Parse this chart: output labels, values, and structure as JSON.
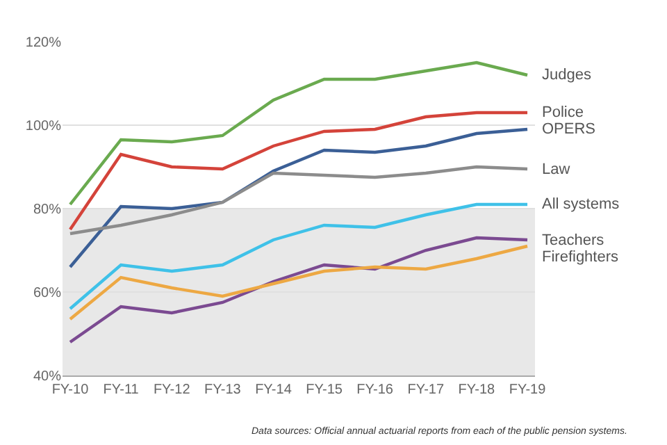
{
  "chart_data": {
    "type": "line",
    "categories": [
      "FY-10",
      "FY-11",
      "FY-12",
      "FY-13",
      "FY-14",
      "FY-15",
      "FY-16",
      "FY-17",
      "FY-18",
      "FY-19"
    ],
    "series": [
      {
        "name": "Judges",
        "color": "#6aaa4f",
        "values": [
          81,
          96.5,
          96,
          97.5,
          106,
          111,
          111,
          113,
          115,
          112
        ]
      },
      {
        "name": "Police",
        "color": "#d4433a",
        "values": [
          75,
          93,
          90,
          89.5,
          95,
          98.5,
          99,
          102,
          103,
          103
        ]
      },
      {
        "name": "OPERS",
        "color": "#3b5f96",
        "values": [
          66,
          80.5,
          80,
          81.5,
          89,
          94,
          93.5,
          95,
          98,
          99
        ]
      },
      {
        "name": "Law",
        "color": "#8c8c8c",
        "values": [
          74,
          76,
          78.5,
          81.5,
          88.5,
          88,
          87.5,
          88.5,
          90,
          89.5
        ]
      },
      {
        "name": "All systems",
        "color": "#3fc1e8",
        "values": [
          56,
          66.5,
          65,
          66.5,
          72.5,
          76,
          75.5,
          78.5,
          81,
          81
        ]
      },
      {
        "name": "Teachers",
        "color": "#7b4a91",
        "values": [
          48,
          56.5,
          55,
          57.5,
          62.5,
          66.5,
          65.5,
          70,
          73,
          72.5
        ]
      },
      {
        "name": "Firefighters",
        "color": "#eda843",
        "values": [
          53.5,
          63.5,
          61,
          59,
          62,
          65,
          66,
          65.5,
          68,
          71
        ]
      }
    ],
    "ylim": [
      40,
      120
    ],
    "yticks": [
      {
        "value": 40,
        "label": "40%"
      },
      {
        "value": 60,
        "label": "60%"
      },
      {
        "value": 80,
        "label": "80%"
      },
      {
        "value": 100,
        "label": "100%"
      },
      {
        "value": 120,
        "label": "120%"
      }
    ],
    "bands": [
      {
        "axis": "y",
        "from": 40,
        "to": 80,
        "color": "#e8e8e8"
      }
    ],
    "grid": "y",
    "legend": false,
    "marker": "none",
    "line_style": "solid",
    "annotations": [
      "Data sources: Official annual actuarial reports from each of the public pension systems."
    ]
  }
}
